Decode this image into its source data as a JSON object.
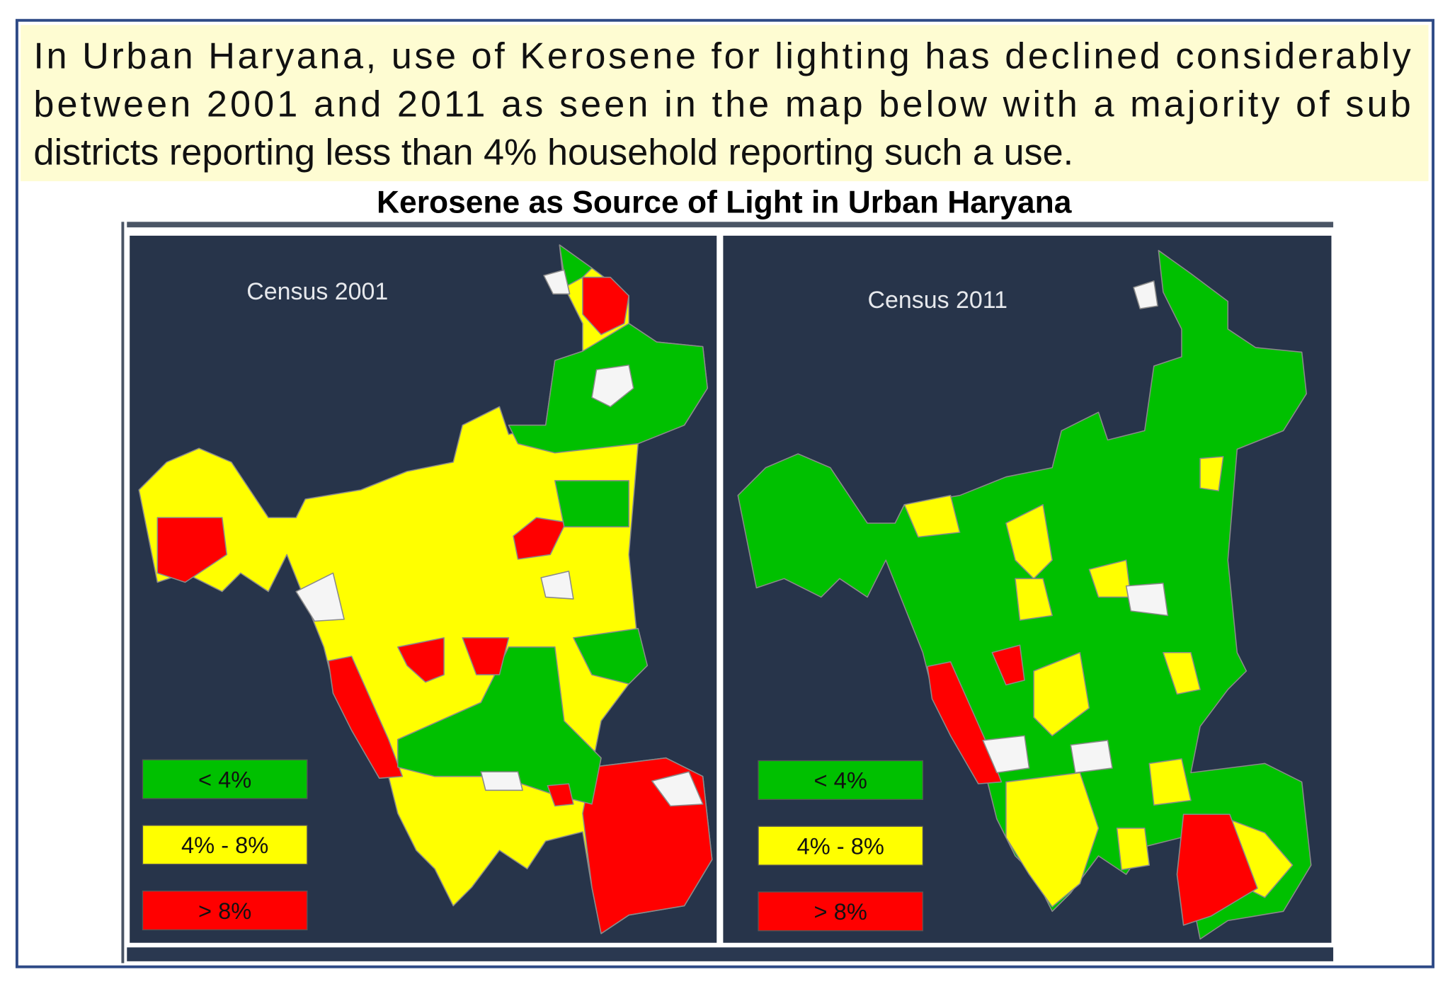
{
  "intro": {
    "lines": [
      "In Urban Haryana, use of Kerosene for lighting has declined considerably",
      "between 2001 and 2011 as seen in the map below with a majority of sub",
      "districts reporting less than 4% household reporting such a use."
    ]
  },
  "title": "Kerosene as Source of Light in Urban Haryana",
  "panels": [
    {
      "label": "Census 2001",
      "legend": [
        {
          "label": "< 4%",
          "color": "#00c000"
        },
        {
          "label": "4% - 8%",
          "color": "#ffff00"
        },
        {
          "label": "> 8%",
          "color": "#ff0000"
        }
      ]
    },
    {
      "label": "Census 2011",
      "legend": [
        {
          "label": "< 4%",
          "color": "#00c000"
        },
        {
          "label": "4% - 8%",
          "color": "#ffff00"
        },
        {
          "label": "> 8%",
          "color": "#ff0000"
        }
      ]
    }
  ]
}
